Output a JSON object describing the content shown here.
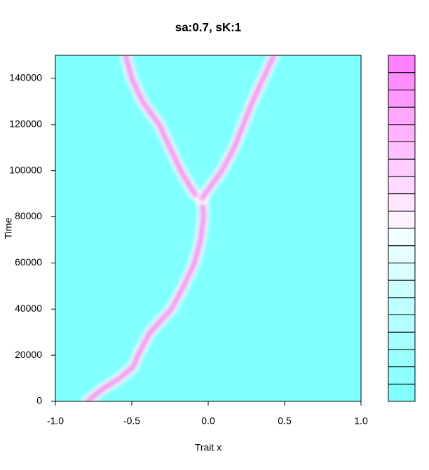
{
  "chart_data": {
    "type": "density-trace",
    "title": "sa:0.7, sK:1",
    "x_label": "Trait x",
    "y_label": "Time",
    "xlim": [
      -1,
      1
    ],
    "xticks": [
      {
        "value": -1,
        "label": "-1.0"
      },
      -0.5,
      {
        "value": 0,
        "label": "0.0"
      },
      0.5,
      {
        "value": 1,
        "label": "1.0"
      }
    ],
    "ylim": [
      0,
      150000
    ],
    "yticks": [
      0,
      20000,
      40000,
      60000,
      80000,
      100000,
      120000,
      140000
    ],
    "background": "#80ffff",
    "color": "#f08cf0",
    "branches": [
      {
        "x": [
          -0.79,
          -0.7,
          -0.58,
          -0.49,
          -0.46,
          -0.42,
          -0.38,
          -0.31,
          -0.24,
          -0.16,
          -0.09,
          -0.05,
          -0.03,
          -0.04
        ],
        "y": [
          0,
          5000,
          10000,
          15000,
          20000,
          25000,
          30000,
          35000,
          40000,
          50000,
          60000,
          70000,
          80000,
          88000
        ]
      },
      {
        "x": [
          -0.04,
          -0.09,
          -0.18,
          -0.25,
          -0.32,
          -0.43,
          -0.5,
          -0.54
        ],
        "y": [
          88000,
          90000,
          100000,
          110000,
          120000,
          130000,
          140000,
          150000
        ]
      },
      {
        "x": [
          -0.04,
          -0.02,
          0.09,
          0.17,
          0.23,
          0.29,
          0.36,
          0.43
        ],
        "y": [
          88000,
          90000,
          100000,
          110000,
          120000,
          130000,
          140000,
          150000
        ]
      }
    ],
    "colorkey": [
      "#80ffff",
      "#8dffff",
      "#99ffff",
      "#a6ffff",
      "#b3ffff",
      "#bfffff",
      "#ccffff",
      "#d9ffff",
      "#e6ffff",
      "#f2ffff",
      "#fff2ff",
      "#ffe6ff",
      "#ffd9ff",
      "#ffccff",
      "#ffbfff",
      "#ffb3ff",
      "#ffa6ff",
      "#ff99ff",
      "#ff8dff",
      "#ff80ff"
    ]
  }
}
